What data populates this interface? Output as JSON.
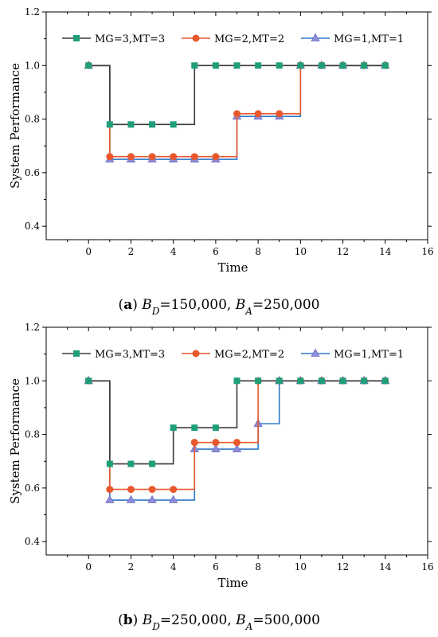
{
  "chart_data": [
    {
      "type": "line",
      "caption": {
        "label": "a",
        "text_parts": [
          "B",
          "D",
          "=150,000, ",
          "B",
          "A",
          "=250,000"
        ]
      },
      "xlabel": "Time",
      "ylabel": "System Performance",
      "xlim": [
        -2,
        16
      ],
      "ylim": [
        0.35,
        1.2
      ],
      "xticks": [
        "0",
        "2",
        "4",
        "6",
        "8",
        "10",
        "12",
        "14",
        "16"
      ],
      "yticks": [
        "0.4",
        "0.6",
        "0.8",
        "1.0",
        "1.2"
      ],
      "x": [
        0,
        1,
        2,
        3,
        4,
        5,
        6,
        7,
        8,
        9,
        10,
        11,
        12,
        13,
        14
      ],
      "step": "post",
      "series": [
        {
          "name": "MG=3,MT=3",
          "color": "#1f9e7a",
          "marker": "square",
          "values": [
            1.0,
            0.78,
            0.78,
            0.78,
            0.78,
            1.0,
            1.0,
            1.0,
            1.0,
            1.0,
            1.0,
            1.0,
            1.0,
            1.0,
            1.0
          ]
        },
        {
          "name": "MG=2,MT=2",
          "color": "#e8582c",
          "marker": "circle",
          "values": [
            1.0,
            0.66,
            0.66,
            0.66,
            0.66,
            0.66,
            0.66,
            0.82,
            0.82,
            0.82,
            1.0,
            1.0,
            1.0,
            1.0,
            1.0
          ]
        },
        {
          "name": "MG=1,MT=1",
          "color": "#2e78c7",
          "marker": "triangle",
          "values": [
            1.0,
            0.65,
            0.65,
            0.65,
            0.65,
            0.65,
            0.65,
            0.81,
            0.81,
            0.81,
            1.0,
            1.0,
            1.0,
            1.0,
            1.0
          ]
        }
      ]
    },
    {
      "type": "line",
      "caption": {
        "label": "b",
        "text_parts": [
          "B",
          "D",
          "=250,000, ",
          "B",
          "A",
          "=500,000"
        ]
      },
      "xlabel": "Time",
      "ylabel": "System Performance",
      "xlim": [
        -2,
        16
      ],
      "ylim": [
        0.35,
        1.2
      ],
      "xticks": [
        "0",
        "2",
        "4",
        "6",
        "8",
        "10",
        "12",
        "14",
        "16"
      ],
      "yticks": [
        "0.4",
        "0.6",
        "0.8",
        "1.0",
        "1.2"
      ],
      "x": [
        0,
        1,
        2,
        3,
        4,
        5,
        6,
        7,
        8,
        9,
        10,
        11,
        12,
        13,
        14
      ],
      "step": "post",
      "series": [
        {
          "name": "MG=3,MT=3",
          "color": "#1f9e7a",
          "marker": "square",
          "values": [
            1.0,
            0.69,
            0.69,
            0.69,
            0.825,
            0.825,
            0.825,
            1.0,
            1.0,
            1.0,
            1.0,
            1.0,
            1.0,
            1.0,
            1.0
          ]
        },
        {
          "name": "MG=2,MT=2",
          "color": "#e8582c",
          "marker": "circle",
          "values": [
            1.0,
            0.595,
            0.595,
            0.595,
            0.595,
            0.77,
            0.77,
            0.77,
            1.0,
            1.0,
            1.0,
            1.0,
            1.0,
            1.0,
            1.0
          ]
        },
        {
          "name": "MG=1,MT=1",
          "color": "#2e78c7",
          "marker": "triangle",
          "values": [
            1.0,
            0.555,
            0.555,
            0.555,
            0.555,
            0.745,
            0.745,
            0.745,
            0.84,
            1.0,
            1.0,
            1.0,
            1.0,
            1.0,
            1.0
          ]
        }
      ]
    }
  ]
}
